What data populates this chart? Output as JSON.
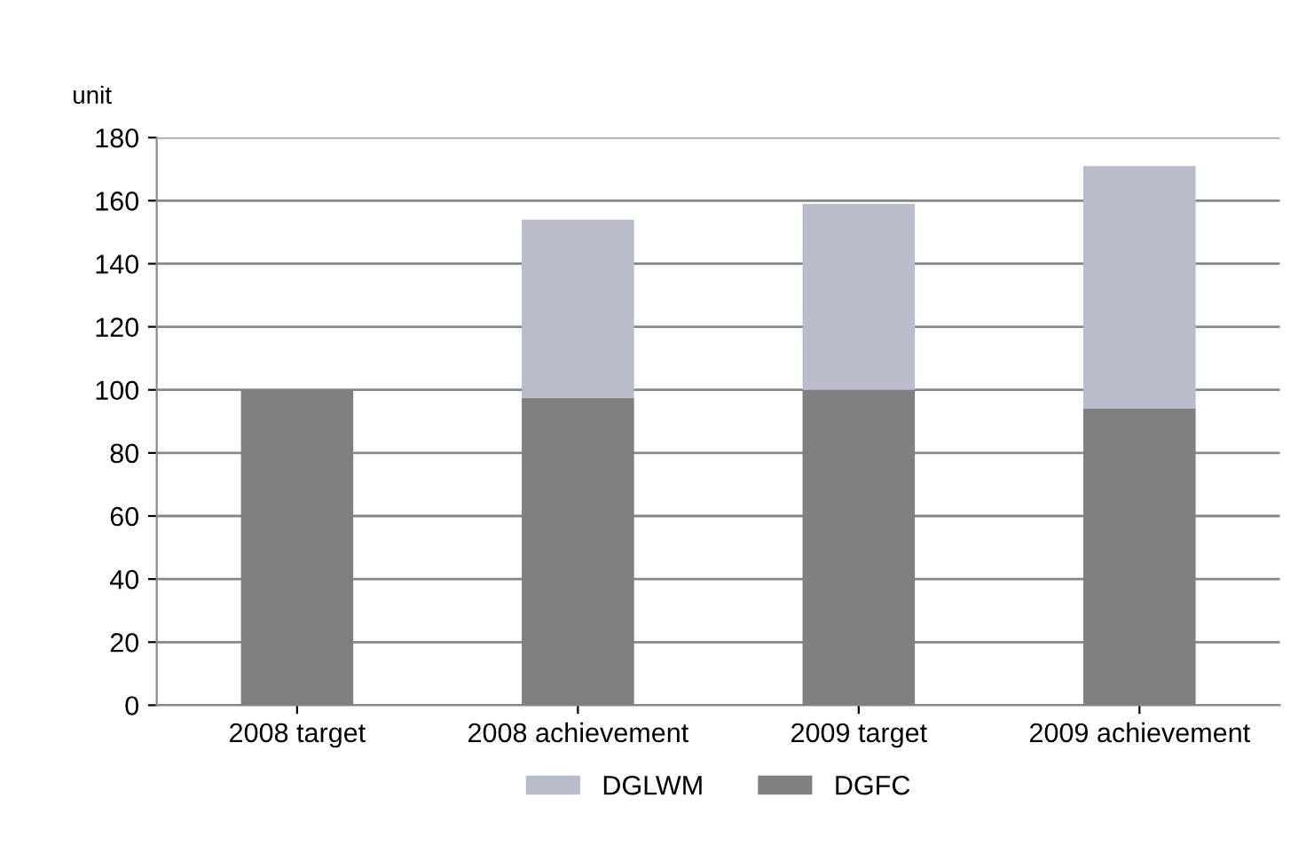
{
  "chart_data": {
    "type": "bar",
    "stacked": true,
    "ylabel": "unit",
    "categories": [
      "2008 target",
      "2008 achievement",
      "2009 target",
      "2009 achievement"
    ],
    "series": [
      {
        "name": "DGFC",
        "color": "#808080",
        "values": [
          100,
          97.5,
          100,
          94
        ]
      },
      {
        "name": "DGLWM",
        "color": "#b8bccb",
        "values": [
          0,
          56.5,
          59,
          77
        ]
      }
    ],
    "ylim": [
      0,
      180
    ],
    "yticks": [
      0,
      20,
      40,
      60,
      80,
      100,
      120,
      140,
      160,
      180
    ],
    "grid": "y",
    "legend": "bottom"
  }
}
